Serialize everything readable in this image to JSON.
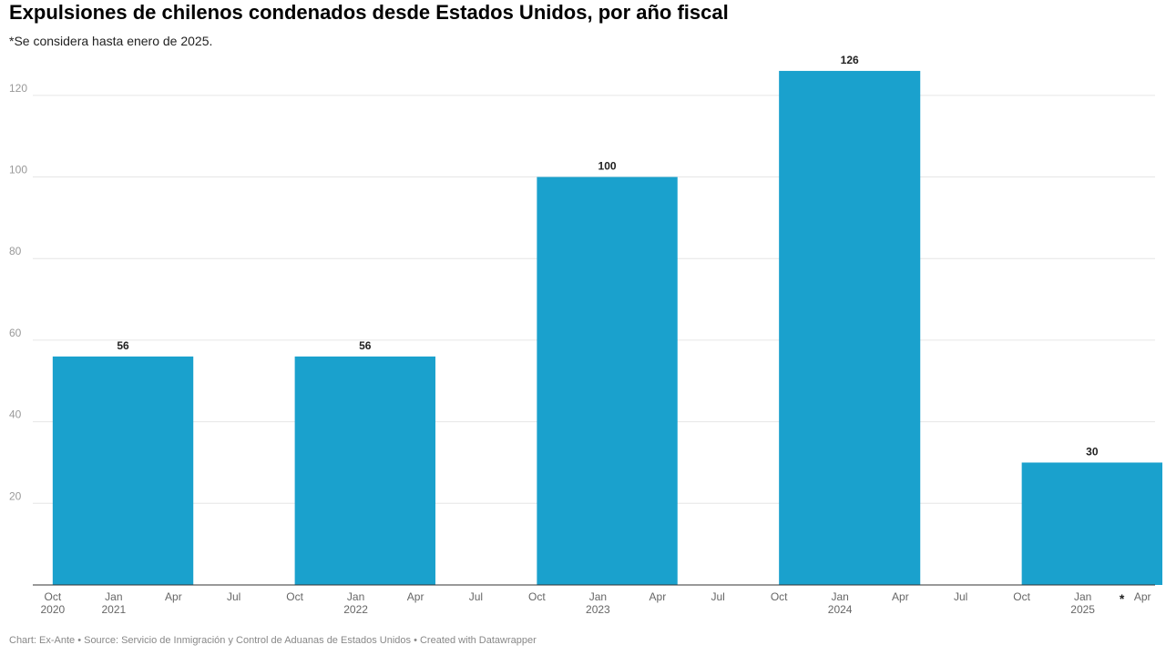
{
  "title": "Expulsiones de chilenos condenados desde Estados Unidos, por año fiscal",
  "subtitle": "*Se considera hasta enero de 2025.",
  "footer": "Chart: Ex-Ante • Source: Servicio de Inmigración y Control de Aduanas de Estados Unidos • Created with Datawrapper",
  "colors": {
    "bar": "#1aa1cd",
    "grid": "#e6e6e6",
    "axis": "#333333"
  },
  "chart_data": {
    "type": "bar",
    "title": "Expulsiones de chilenos condenados desde Estados Unidos, por año fiscal",
    "xlabel": "",
    "ylabel": "",
    "ylim": [
      0,
      130
    ],
    "y_ticks": [
      20,
      40,
      60,
      80,
      100,
      120
    ],
    "grid": true,
    "x_range": [
      "2020-09-01",
      "2025-04-20"
    ],
    "x_ticks": [
      {
        "date": "2020-10-01",
        "month": "Oct",
        "year": "2020"
      },
      {
        "date": "2021-01-01",
        "month": "Jan",
        "year": "2021"
      },
      {
        "date": "2021-04-01",
        "month": "Apr",
        "year": ""
      },
      {
        "date": "2021-07-01",
        "month": "Jul",
        "year": ""
      },
      {
        "date": "2021-10-01",
        "month": "Oct",
        "year": ""
      },
      {
        "date": "2022-01-01",
        "month": "Jan",
        "year": "2022"
      },
      {
        "date": "2022-04-01",
        "month": "Apr",
        "year": ""
      },
      {
        "date": "2022-07-01",
        "month": "Jul",
        "year": ""
      },
      {
        "date": "2022-10-01",
        "month": "Oct",
        "year": ""
      },
      {
        "date": "2023-01-01",
        "month": "Jan",
        "year": "2023"
      },
      {
        "date": "2023-04-01",
        "month": "Apr",
        "year": ""
      },
      {
        "date": "2023-07-01",
        "month": "Jul",
        "year": ""
      },
      {
        "date": "2023-10-01",
        "month": "Oct",
        "year": ""
      },
      {
        "date": "2024-01-01",
        "month": "Jan",
        "year": "2024"
      },
      {
        "date": "2024-04-01",
        "month": "Apr",
        "year": ""
      },
      {
        "date": "2024-07-01",
        "month": "Jul",
        "year": ""
      },
      {
        "date": "2024-10-01",
        "month": "Oct",
        "year": ""
      },
      {
        "date": "2025-01-01",
        "month": "Jan",
        "year": "2025"
      },
      {
        "date": "2025-04-01",
        "month": "Apr",
        "year": ""
      }
    ],
    "bars": [
      {
        "start": "2020-10-01",
        "end": "2021-05-01",
        "value": 56,
        "label": "56"
      },
      {
        "start": "2021-10-01",
        "end": "2022-05-01",
        "value": 56,
        "label": "56"
      },
      {
        "start": "2022-10-01",
        "end": "2023-05-01",
        "value": 100,
        "label": "100"
      },
      {
        "start": "2023-10-01",
        "end": "2024-05-01",
        "value": 126,
        "label": "126"
      },
      {
        "start": "2024-10-01",
        "end": "2025-05-01",
        "value": 30,
        "label": "30"
      }
    ],
    "annotations": [
      {
        "date": "2025-03-01",
        "text": "*"
      }
    ]
  }
}
